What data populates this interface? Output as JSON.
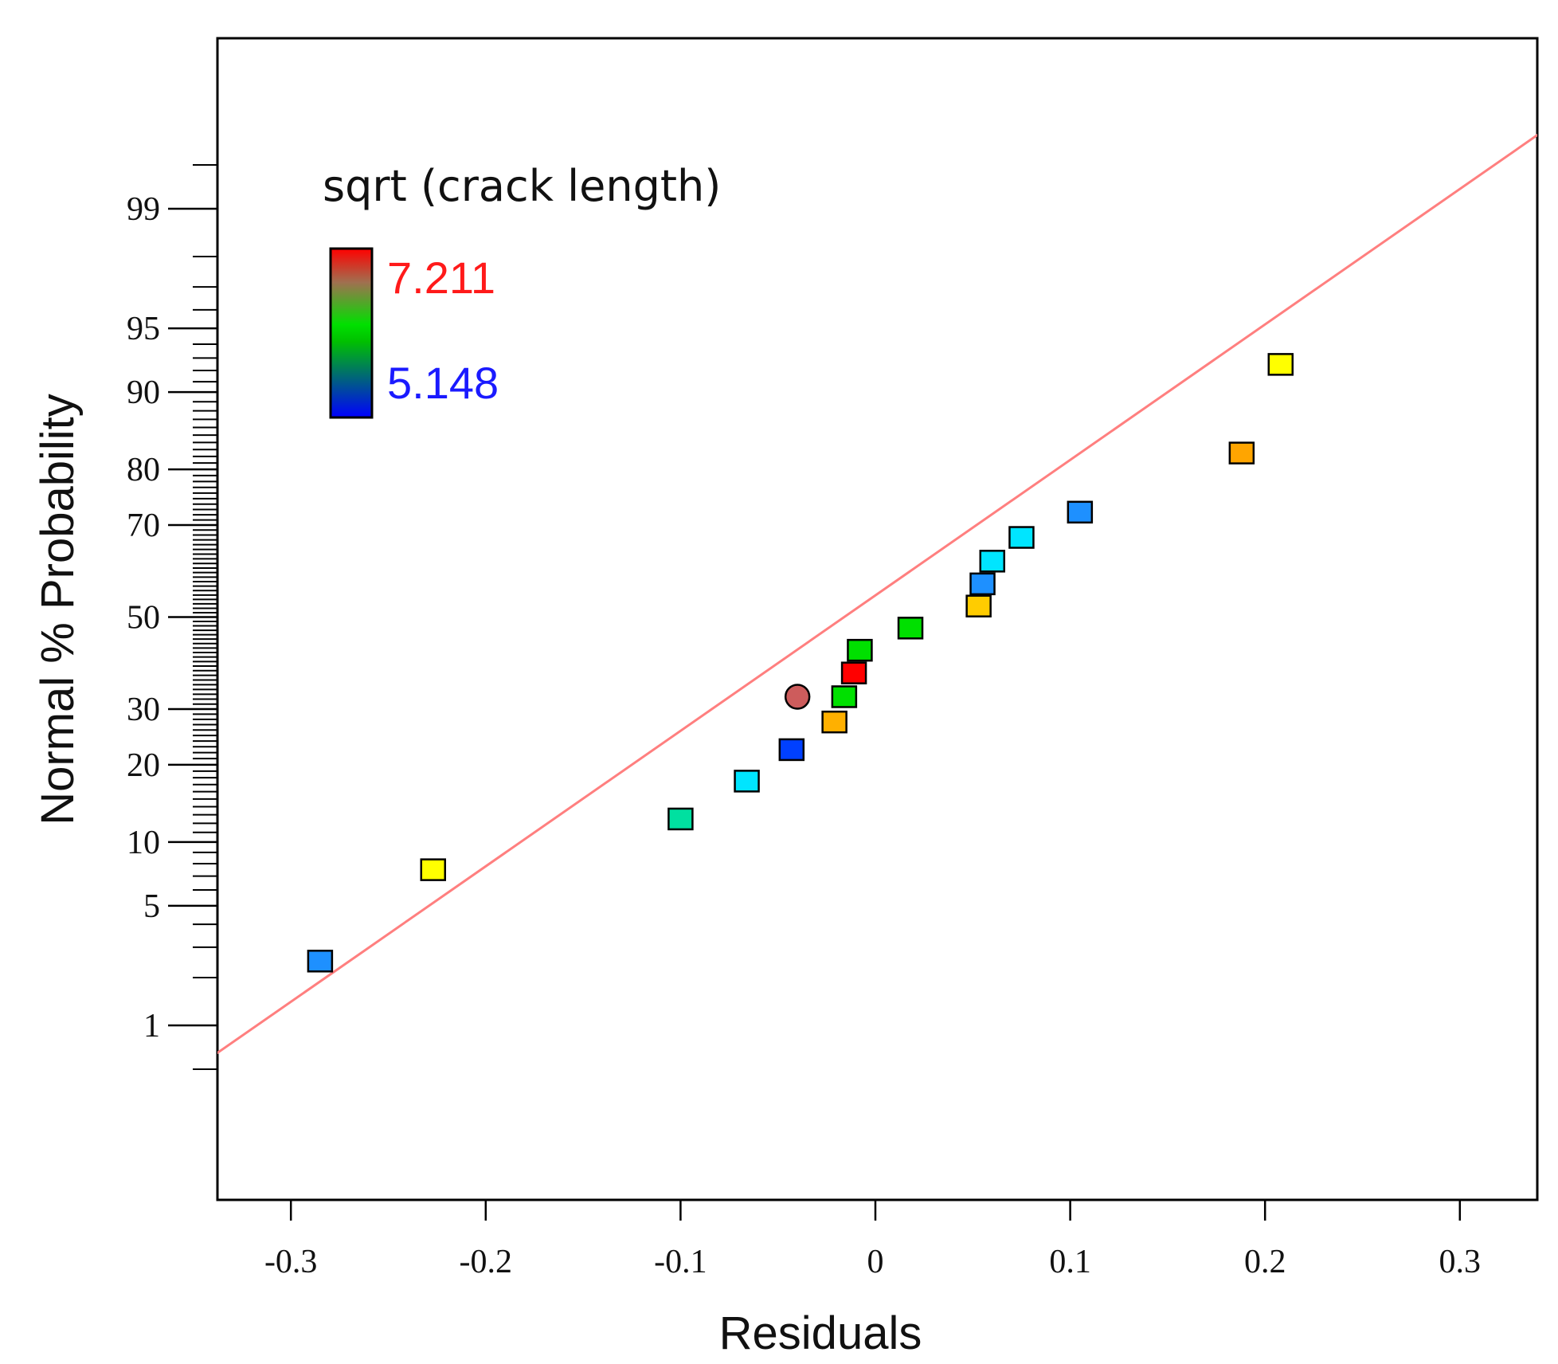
{
  "chart_data": {
    "type": "scatter",
    "title": "",
    "xlabel": "Residuals",
    "ylabel": "Normal % Probability",
    "xlim": [
      -0.34,
      0.34
    ],
    "xticks": [
      -0.3,
      -0.2,
      -0.1,
      0,
      0.1,
      0.2,
      0.3
    ],
    "xtick_labels": [
      "-0.3",
      "-0.2",
      "-0.1",
      "0",
      "0.1",
      "0.2",
      "0.3"
    ],
    "yscale": "normal-probability",
    "ylim": [
      0.1,
      99.9
    ],
    "yticks_labeled": [
      1,
      5,
      10,
      20,
      30,
      50,
      70,
      80,
      90,
      95,
      99
    ],
    "ytick_labels": [
      "1",
      "5",
      "10",
      "20",
      "30",
      "50",
      "70",
      "80",
      "90",
      "95",
      "99"
    ],
    "grid": false,
    "legend": {
      "title": "sqrt (crack length)",
      "max_label": "7.211",
      "min_label": "5.148",
      "max_value": 7.211,
      "min_value": 5.148,
      "max_color": "#ff1a1a",
      "min_color": "#1a1aff",
      "placement": "top-left"
    },
    "reference_line": {
      "color": "#ff7f7f",
      "points": [
        {
          "x": -0.34,
          "p": 0.62
        },
        {
          "x": 0.34,
          "p": 99.7
        }
      ]
    },
    "series": [
      {
        "name": "sqrt (crack length)",
        "points": [
          {
            "x": -0.285,
            "p": 2.5,
            "color": "#1e90ff",
            "shape": "square"
          },
          {
            "x": -0.227,
            "p": 7.5,
            "color": "#ffff00",
            "shape": "square"
          },
          {
            "x": -0.1,
            "p": 12.5,
            "color": "#00e0a0",
            "shape": "square"
          },
          {
            "x": -0.066,
            "p": 17.5,
            "color": "#00e5ff",
            "shape": "square"
          },
          {
            "x": -0.043,
            "p": 22.5,
            "color": "#0040ff",
            "shape": "square"
          },
          {
            "x": -0.021,
            "p": 27.5,
            "color": "#ffb000",
            "shape": "square"
          },
          {
            "x": -0.04,
            "p": 32.5,
            "color": "#cd5c5c",
            "shape": "circle"
          },
          {
            "x": -0.016,
            "p": 32.5,
            "color": "#00e000",
            "shape": "square"
          },
          {
            "x": -0.011,
            "p": 37.5,
            "color": "#ff0000",
            "shape": "square"
          },
          {
            "x": -0.008,
            "p": 42.5,
            "color": "#00e000",
            "shape": "square"
          },
          {
            "x": 0.018,
            "p": 47.5,
            "color": "#00e000",
            "shape": "square"
          },
          {
            "x": 0.053,
            "p": 52.5,
            "color": "#ffcc00",
            "shape": "square"
          },
          {
            "x": 0.055,
            "p": 57.5,
            "color": "#1e90ff",
            "shape": "square"
          },
          {
            "x": 0.06,
            "p": 62.5,
            "color": "#00e5ff",
            "shape": "square"
          },
          {
            "x": 0.075,
            "p": 67.5,
            "color": "#00e5ff",
            "shape": "square"
          },
          {
            "x": 0.105,
            "p": 72.5,
            "color": "#1e90ff",
            "shape": "square"
          },
          {
            "x": 0.188,
            "p": 82.5,
            "color": "#ffa500",
            "shape": "square"
          },
          {
            "x": 0.208,
            "p": 92.5,
            "color": "#ffff00",
            "shape": "square"
          }
        ]
      }
    ]
  }
}
